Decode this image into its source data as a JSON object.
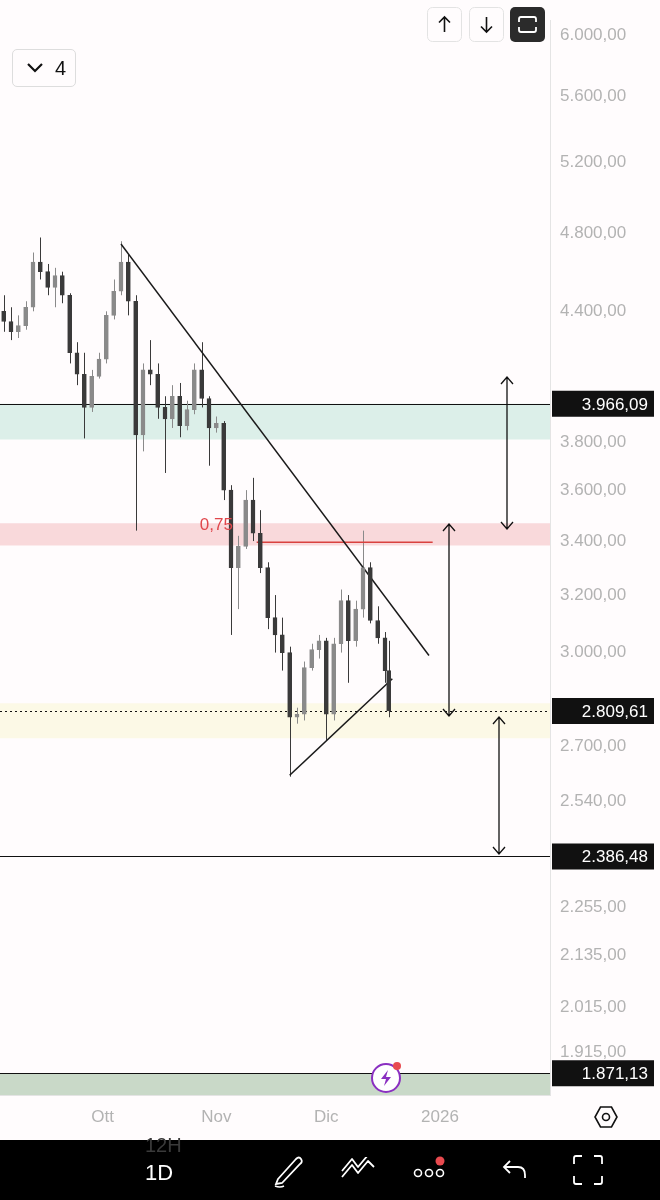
{
  "chart_data": {
    "type": "candlestick",
    "log": true,
    "grid": false,
    "colors": [
      "#3a3a3a",
      "#3a3a3a",
      "#8a8a8a",
      "#8a8a8a",
      "#8a8a8a",
      "#3a3a3a",
      "#3a3a3a",
      "#8a8a8a",
      "#3a3a3a",
      "#3a3a3a",
      "#3a3a3a",
      "#3a3a3a",
      "#8a8a8a",
      "#8a8a8a",
      "#8a8a8a",
      "#8a8a8a",
      "#8a8a8a",
      "#3a3a3a",
      "#3a3a3a",
      "#8a8a8a",
      "#3a3a3a",
      "#3a3a3a",
      "#3a3a3a",
      "#8a8a8a",
      "#3a3a3a",
      "#8a8a8a",
      "#8a8a8a",
      "#3a3a3a",
      "#3a3a3a",
      "#8a8a8a",
      "#3a3a3a",
      "#3a3a3a",
      "#8a8a8a",
      "#8a8a8a",
      "#3a3a3a",
      "#3a3a3a",
      "#3a3a3a",
      "#3a3a3a",
      "#3a3a3a",
      "#3a3a3a",
      "#8a8a8a",
      "#8a8a8a",
      "#8a8a8a",
      "#8a8a8a",
      "#3a3a3a",
      "#8a8a8a",
      "#8a8a8a",
      "#3a3a3a",
      "#8a8a8a",
      "#8a8a8a",
      "#3a3a3a",
      "#3a3a3a",
      "#3a3a3a",
      "#3a3a3a"
    ],
    "x": [
      "2025-09-04",
      "2025-09-06",
      "2025-09-08",
      "2025-09-10",
      "2025-09-12",
      "2025-09-14",
      "2025-09-16",
      "2025-09-18",
      "2025-09-20",
      "2025-09-22",
      "2025-09-24",
      "2025-09-26",
      "2025-09-28",
      "2025-09-30",
      "2025-10-02",
      "2025-10-04",
      "2025-10-06",
      "2025-10-08",
      "2025-10-10",
      "2025-10-12",
      "2025-10-14",
      "2025-10-16",
      "2025-10-18",
      "2025-10-20",
      "2025-10-22",
      "2025-10-24",
      "2025-10-26",
      "2025-10-28",
      "2025-10-30",
      "2025-11-01",
      "2025-11-03",
      "2025-11-05",
      "2025-11-07",
      "2025-11-09",
      "2025-11-11",
      "2025-11-13",
      "2025-11-15",
      "2025-11-17",
      "2025-11-19",
      "2025-11-21",
      "2025-11-23",
      "2025-11-25",
      "2025-11-27",
      "2025-11-29",
      "2025-12-01",
      "2025-12-03",
      "2025-12-05",
      "2025-12-07",
      "2025-12-09",
      "2025-12-11",
      "2025-12-13",
      "2025-12-15",
      "2025-12-17",
      "2025-12-18"
    ],
    "ohlc": [
      [
        4400,
        4480,
        4300,
        4350
      ],
      [
        4350,
        4420,
        4260,
        4300
      ],
      [
        4300,
        4380,
        4270,
        4330
      ],
      [
        4330,
        4450,
        4310,
        4420
      ],
      [
        4420,
        4700,
        4400,
        4650
      ],
      [
        4650,
        4780,
        4560,
        4600
      ],
      [
        4600,
        4640,
        4480,
        4520
      ],
      [
        4520,
        4620,
        4420,
        4580
      ],
      [
        4580,
        4600,
        4440,
        4480
      ],
      [
        4480,
        4490,
        4150,
        4200
      ],
      [
        4200,
        4250,
        4050,
        4100
      ],
      [
        4100,
        4200,
        3815,
        3950
      ],
      [
        3950,
        4120,
        3930,
        4090
      ],
      [
        4090,
        4200,
        4080,
        4170
      ],
      [
        4170,
        4400,
        4150,
        4380
      ],
      [
        4380,
        4560,
        4360,
        4500
      ],
      [
        4500,
        4760,
        4480,
        4650
      ],
      [
        4650,
        4690,
        4380,
        4450
      ],
      [
        4450,
        4480,
        3440,
        3830
      ],
      [
        3830,
        4150,
        3760,
        4120
      ],
      [
        4120,
        4260,
        4050,
        4100
      ],
      [
        4100,
        4150,
        3900,
        3950
      ],
      [
        3950,
        4000,
        3670,
        3900
      ],
      [
        3900,
        4050,
        3860,
        4000
      ],
      [
        4000,
        4060,
        3820,
        3870
      ],
      [
        3870,
        3980,
        3850,
        3940
      ],
      [
        3940,
        4150,
        3920,
        4120
      ],
      [
        4120,
        4250,
        3950,
        3990
      ],
      [
        3990,
        4000,
        3700,
        3860
      ],
      [
        3860,
        3910,
        3840,
        3880
      ],
      [
        3880,
        3890,
        3560,
        3600
      ],
      [
        3600,
        3620,
        3060,
        3300
      ],
      [
        3300,
        3420,
        3150,
        3380
      ],
      [
        3380,
        3600,
        3370,
        3560
      ],
      [
        3560,
        3650,
        3400,
        3430
      ],
      [
        3430,
        3520,
        3280,
        3300
      ],
      [
        3300,
        3320,
        3080,
        3120
      ],
      [
        3120,
        3200,
        3000,
        3060
      ],
      [
        3060,
        3120,
        2940,
        3000
      ],
      [
        3000,
        3020,
        2610,
        2790
      ],
      [
        2790,
        2820,
        2770,
        2800
      ],
      [
        2800,
        2970,
        2780,
        2950
      ],
      [
        2950,
        3030,
        2940,
        3010
      ],
      [
        3010,
        3060,
        2980,
        3040
      ],
      [
        3040,
        3050,
        2720,
        2800
      ],
      [
        2800,
        3050,
        2780,
        3030
      ],
      [
        3030,
        3220,
        3000,
        3180
      ],
      [
        3180,
        3200,
        2900,
        3040
      ],
      [
        3040,
        3180,
        3020,
        3150
      ],
      [
        3150,
        3440,
        3120,
        3300
      ],
      [
        3300,
        3320,
        3100,
        3110
      ],
      [
        3110,
        3160,
        3030,
        3050
      ],
      [
        3050,
        3070,
        2900,
        2940
      ],
      [
        2940,
        3040,
        2790,
        2810
      ]
    ],
    "series": [
      {
        "type": "line",
        "x": [
          "2025-10-06",
          "2025-12-29"
        ],
        "values": [
          4745,
          2990
        ],
        "color": "#1a1a1a"
      },
      {
        "type": "line",
        "x": [
          "2025-11-21",
          "2025-12-19"
        ],
        "values": [
          2614,
          2913
        ],
        "color": "#1a1a1a"
      },
      {
        "type": "line",
        "x": [
          "2025-11-12",
          "2025-12-30"
        ],
        "values": [
          3395,
          3395
        ],
        "color": "#d9423f"
      }
    ],
    "xlim": [
      "2025-09-03",
      "2026-01-31"
    ],
    "xticks": [
      {
        "value": "2025-10-01",
        "label": "Ott"
      },
      {
        "value": "2025-11-01",
        "label": "Nov"
      },
      {
        "value": "2025-12-01",
        "label": "Dic"
      },
      {
        "value": "2026-01-01",
        "label": "2026"
      }
    ],
    "ylim": [
      1826,
      6100
    ],
    "yticks": [
      {
        "value": 6000,
        "label": "6.000,00"
      },
      {
        "value": 5600,
        "label": "5.600,00"
      },
      {
        "value": 5200,
        "label": "5.200,00"
      },
      {
        "value": 4800,
        "label": "4.800,00"
      },
      {
        "value": 4400,
        "label": "4.400,00"
      },
      {
        "value": 3800,
        "label": "3.800,00"
      },
      {
        "value": 3600,
        "label": "3.600,00"
      },
      {
        "value": 3400,
        "label": "3.400,00"
      },
      {
        "value": 3200,
        "label": "3.200,00"
      },
      {
        "value": 3000,
        "label": "3.000,00"
      },
      {
        "value": 2700,
        "label": "2.700,00"
      },
      {
        "value": 2540,
        "label": "2.540,00"
      },
      {
        "value": 2255,
        "label": "2.255,00"
      },
      {
        "value": 2135,
        "label": "2.135,00"
      },
      {
        "value": 2015,
        "label": "2.015,00"
      },
      {
        "value": 1915,
        "label": "1.915,00"
      }
    ],
    "bands": [
      {
        "axis": "y",
        "from": 3810,
        "to": 3966.09,
        "color": "#dcefe9"
      },
      {
        "axis": "y",
        "from": 3383,
        "to": 3469,
        "color": "#f9d9db"
      },
      {
        "axis": "y",
        "from": 2725,
        "to": 2834,
        "color": "#fcf9e6"
      },
      {
        "axis": "y",
        "from": 1826,
        "to": 1871.13,
        "color": "#c9d9c8"
      }
    ],
    "ref_lines": [
      {
        "axis": "y",
        "value": 3966.09,
        "label": "3.966,09",
        "color": "#111111"
      },
      {
        "axis": "y",
        "value": 2809.61,
        "label": "2.809,61",
        "color": "#111111",
        "line_style": "dotted"
      },
      {
        "axis": "y",
        "value": 2386.48,
        "label": "2.386,48",
        "color": "#111111"
      },
      {
        "axis": "y",
        "value": 1871.13,
        "label": "1.871,13",
        "color": "#111111"
      }
    ],
    "annotations": [
      {
        "text": "0,75",
        "x": "2025-11-01",
        "y": 3460
      },
      "4",
      "12H",
      "1D"
    ]
  }
}
